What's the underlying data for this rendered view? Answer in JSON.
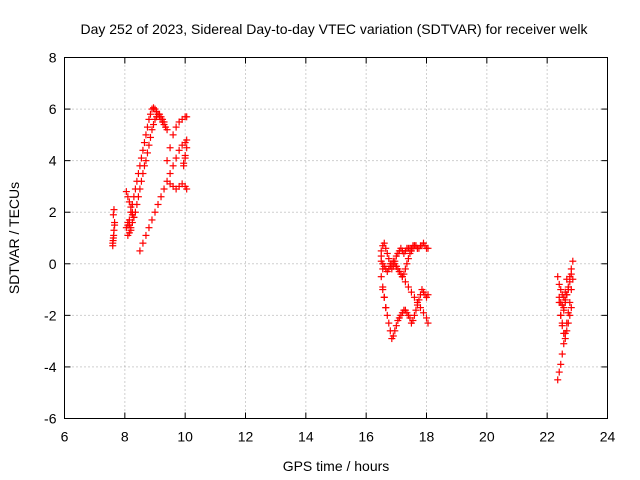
{
  "chart_data": {
    "type": "scatter",
    "title": "Day 252 of 2023, Sidereal Day-to-day VTEC variation (SDTVAR) for receiver welk",
    "xlabel": "GPS time / hours",
    "ylabel": "SDTVAR / TECUs",
    "xlim": [
      6,
      24
    ],
    "ylim": [
      -6,
      8
    ],
    "xticks": [
      "6",
      "8",
      "10",
      "12",
      "14",
      "16",
      "18",
      "20",
      "22",
      "24"
    ],
    "yticks": [
      "-6",
      "-4",
      "-2",
      "0",
      "2",
      "4",
      "6",
      "8"
    ],
    "grid": true,
    "marker": "plus",
    "color": "#ff0000",
    "series": [
      {
        "x": [
          7.6,
          7.62,
          7.64,
          7.66,
          7.62,
          7.64,
          7.6,
          7.66,
          7.63,
          7.61,
          8.05,
          8.1,
          8.15,
          8.2,
          8.25,
          8.3,
          8.35,
          8.4,
          8.45,
          8.5,
          8.55,
          8.6,
          8.65,
          8.7,
          8.75,
          8.8,
          8.85,
          8.9,
          8.95,
          9.0,
          9.05,
          9.1,
          9.15,
          9.2,
          9.25,
          9.3,
          9.35,
          9.4,
          8.1,
          8.15,
          8.2,
          8.25,
          8.3,
          8.35,
          8.4,
          8.45,
          8.5,
          8.55,
          8.6,
          8.65,
          8.7,
          8.75,
          8.8,
          8.85,
          8.9,
          8.95,
          9.0,
          9.05,
          9.1,
          9.15,
          9.2,
          9.25,
          9.3,
          8.5,
          8.6,
          8.7,
          8.8,
          8.9,
          9.0,
          9.1,
          9.2,
          9.3,
          9.4,
          9.5,
          9.6,
          9.7,
          9.8,
          9.9,
          10.0,
          10.05,
          9.4,
          9.5,
          9.6,
          9.7,
          9.8,
          9.9,
          10.0,
          10.05,
          9.5,
          9.6,
          9.7,
          9.8,
          9.9,
          10.0,
          10.05,
          8.05,
          8.1,
          8.15,
          8.2,
          8.25,
          8.3,
          8.15,
          8.2,
          8.1,
          8.25,
          9.95,
          10.0,
          10.05,
          10.0,
          9.95,
          16.5,
          16.55,
          16.6,
          16.65,
          16.7,
          16.75,
          16.8,
          16.85,
          16.9,
          16.95,
          17.0,
          17.05,
          17.1,
          17.15,
          17.2,
          17.25,
          17.3,
          17.35,
          17.4,
          17.45,
          17.5,
          17.55,
          17.6,
          17.65,
          17.7,
          16.55,
          16.6,
          16.65,
          16.7,
          16.75,
          16.8,
          16.85,
          16.9,
          16.95,
          17.0,
          17.05,
          17.1,
          17.15,
          17.2,
          17.25,
          17.3,
          17.35,
          17.4,
          17.45,
          17.5,
          17.55,
          17.6,
          17.65,
          17.7,
          17.75,
          17.8,
          17.85,
          17.9,
          17.95,
          18.0,
          18.05,
          16.5,
          16.55,
          16.6,
          16.65,
          16.7,
          16.75,
          16.8,
          16.85,
          16.9,
          16.95,
          17.0,
          17.05,
          17.1,
          17.15,
          17.2,
          17.25,
          17.3,
          17.35,
          17.4,
          17.45,
          17.5,
          17.55,
          17.6,
          17.65,
          17.7,
          17.75,
          17.8,
          17.85,
          17.9,
          17.95,
          18.0,
          18.05,
          17.0,
          17.1,
          17.2,
          17.3,
          17.4,
          17.5,
          17.6,
          17.7,
          17.8,
          17.9,
          18.0,
          18.05,
          16.5,
          16.55,
          16.6,
          16.65,
          16.5,
          16.55,
          22.35,
          22.4,
          22.45,
          22.5,
          22.55,
          22.6,
          22.65,
          22.7,
          22.75,
          22.8,
          22.85,
          22.4,
          22.45,
          22.5,
          22.55,
          22.6,
          22.65,
          22.7,
          22.75,
          22.8,
          22.85,
          22.35,
          22.4,
          22.45,
          22.5,
          22.55,
          22.6,
          22.65,
          22.7,
          22.75,
          22.8,
          22.45,
          22.5,
          22.55,
          22.6,
          22.65,
          22.7,
          22.75,
          22.8,
          22.4,
          22.45,
          22.5,
          22.55,
          22.6,
          22.65
        ],
        "y": [
          0.8,
          1.0,
          1.3,
          1.6,
          1.9,
          2.1,
          0.7,
          1.5,
          1.1,
          0.9,
          1.4,
          1.5,
          1.7,
          2.0,
          2.3,
          2.6,
          2.9,
          3.2,
          3.5,
          3.8,
          4.1,
          4.4,
          4.7,
          5.0,
          5.3,
          5.6,
          5.8,
          6.0,
          6.05,
          6.0,
          5.9,
          5.8,
          5.7,
          5.6,
          5.5,
          5.4,
          5.3,
          5.2,
          1.1,
          1.2,
          1.4,
          1.6,
          1.8,
          2.0,
          2.3,
          2.6,
          2.9,
          3.2,
          3.5,
          3.8,
          4.0,
          4.3,
          4.6,
          4.9,
          5.2,
          5.4,
          5.6,
          5.7,
          5.8,
          5.8,
          5.7,
          5.6,
          5.5,
          0.5,
          0.8,
          1.1,
          1.4,
          1.7,
          2.0,
          2.3,
          2.6,
          2.9,
          3.2,
          3.1,
          3.0,
          2.9,
          3.0,
          3.1,
          3.0,
          2.9,
          4.0,
          4.5,
          5.0,
          5.3,
          5.5,
          5.6,
          5.7,
          5.7,
          3.5,
          3.8,
          4.1,
          4.4,
          4.6,
          4.7,
          4.8,
          2.8,
          2.6,
          2.4,
          2.2,
          2.0,
          1.8,
          1.5,
          1.3,
          1.6,
          1.9,
          3.9,
          4.2,
          4.5,
          4.1,
          3.8,
          0.5,
          0.7,
          0.8,
          0.6,
          0.4,
          0.2,
          0.0,
          -0.2,
          -0.1,
          0.1,
          0.3,
          0.4,
          0.5,
          0.6,
          0.5,
          0.4,
          0.5,
          0.6,
          0.6,
          0.6,
          0.6,
          0.7,
          0.7,
          0.7,
          0.6,
          -1.0,
          -1.3,
          -1.7,
          -2.0,
          -2.3,
          -2.6,
          -2.9,
          -2.8,
          -2.6,
          -2.4,
          -2.2,
          -2.1,
          -2.0,
          -1.9,
          -1.8,
          -1.8,
          -1.9,
          -2.0,
          -2.1,
          -2.3,
          -2.2,
          -2.0,
          -1.8,
          -1.6,
          -1.4,
          -1.2,
          -1.0,
          -1.1,
          -1.2,
          -1.3,
          -1.2,
          0.1,
          0.0,
          -0.1,
          -0.2,
          -0.3,
          -0.2,
          -0.1,
          0.0,
          0.1,
          0.0,
          -0.1,
          -0.2,
          -0.3,
          -0.4,
          -0.5,
          -0.4,
          -0.2,
          0.0,
          0.2,
          0.4,
          0.5,
          0.6,
          0.7,
          0.7,
          0.6,
          0.6,
          0.7,
          0.7,
          0.8,
          0.7,
          0.6,
          0.6,
          -0.1,
          -0.3,
          -0.5,
          -0.7,
          -0.9,
          -1.1,
          -1.3,
          -1.5,
          -1.7,
          -1.9,
          -2.1,
          -2.3,
          -0.5,
          -0.9,
          -1.3,
          -1.7,
          0.3,
          -0.2,
          -4.5,
          -4.2,
          -3.9,
          -3.5,
          -3.1,
          -2.7,
          -2.3,
          -1.9,
          -1.5,
          -1.0,
          -0.6,
          -1.3,
          -1.5,
          -1.6,
          -1.7,
          -1.5,
          -1.2,
          -0.9,
          -0.5,
          -0.2,
          0.1,
          -0.5,
          -0.8,
          -1.0,
          -1.2,
          -1.3,
          -1.4,
          -1.2,
          -1.0,
          -0.7,
          -0.4,
          -2.0,
          -2.4,
          -2.7,
          -2.9,
          -2.6,
          -2.3,
          -2.0,
          -1.7,
          -1.5,
          -2.0,
          -2.3,
          -1.8,
          -1.1,
          -0.6
        ]
      }
    ]
  }
}
